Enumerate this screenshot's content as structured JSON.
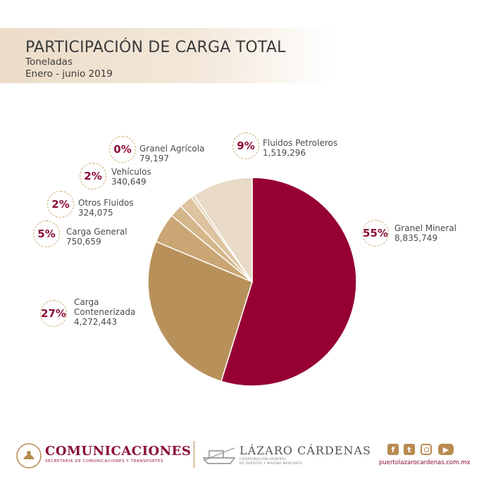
{
  "header": {
    "title": "PARTICIPACIÓN DE CARGA TOTAL",
    "subtitle": "Toneladas",
    "period": "Enero - junio 2019"
  },
  "chart_data": {
    "type": "pie",
    "title": "PARTICIPACIÓN DE CARGA TOTAL",
    "unit": "Toneladas",
    "period": "Enero - junio 2019",
    "slices": [
      {
        "name": "Granel Mineral",
        "value": 8835749,
        "percent_label": "55%",
        "value_label": "8,835,749",
        "color": "#960034"
      },
      {
        "name": "Carga Contenerizada",
        "value": 4272443,
        "percent_label": "27%",
        "value_label": "4,272,443",
        "color": "#b8915a"
      },
      {
        "name": "Carga General",
        "value": 750659,
        "percent_label": "5%",
        "value_label": "750,659",
        "color": "#c9a674"
      },
      {
        "name": "Otros Fluidos",
        "value": 324075,
        "percent_label": "2%",
        "value_label": "324,075",
        "color": "#d4b68b"
      },
      {
        "name": "Vehículos",
        "value": 340649,
        "percent_label": "2%",
        "value_label": "340,649",
        "color": "#ddc39f"
      },
      {
        "name": "Granel Agrícola",
        "value": 79197,
        "percent_label": "0%",
        "value_label": "79,197",
        "color": "#e3cfb2"
      },
      {
        "name": "Fluidos Petroleros",
        "value": 1519296,
        "percent_label": "9%",
        "value_label": "1,519,296",
        "color": "#e8dac6"
      }
    ],
    "colors": {
      "accent": "#8b0e35",
      "badge_border": "#c9a66b"
    }
  },
  "footer": {
    "left_brand": "COMUNICACIONES",
    "left_sub": "SECRETARÍA DE COMUNICACIONES Y TRANSPORTES",
    "center_brand": "LÁZARO CÁRDENAS",
    "center_sub1": "COORDINACIÓN GENERAL",
    "center_sub2": "DE PUERTOS Y MARINA MERCANTE",
    "url": "puertolazarocardenas.com.mx",
    "social": [
      "facebook-icon",
      "twitter-icon",
      "instagram-icon",
      "youtube-icon"
    ]
  }
}
